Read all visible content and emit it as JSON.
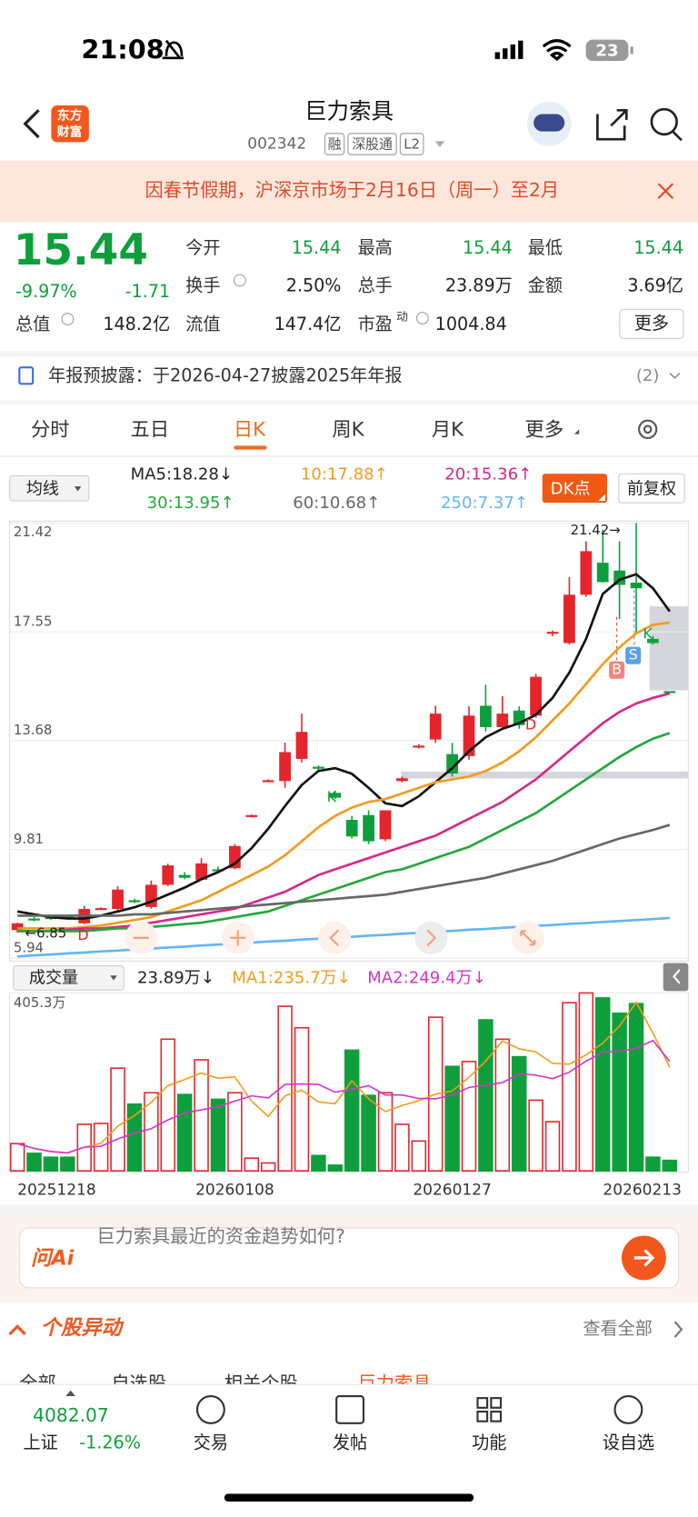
{
  "status": {
    "time": "21:08",
    "battery": "23"
  },
  "header": {
    "logo": [
      "东方",
      "财富"
    ],
    "title": "巨力索具",
    "code": "002342",
    "tags": [
      "融",
      "深股通",
      "L2"
    ]
  },
  "banner": "因春节假期，沪深京市场于2月16日（周一）至2月",
  "quote": {
    "price": "15.44",
    "change_pct": "-9.97%",
    "change": "-1.71",
    "stats": [
      [
        "今开",
        "15.44"
      ],
      [
        "最高",
        "15.44"
      ],
      [
        "最低",
        "15.44"
      ],
      [
        "换手",
        "2.50%"
      ],
      [
        "总手",
        "23.89万"
      ],
      [
        "金额",
        "3.69亿"
      ],
      [
        "总值",
        "148.2亿"
      ],
      [
        "流值",
        "147.4亿"
      ]
    ],
    "pe_label": "市盈",
    "pe_sup": "动",
    "pe": "1004.84",
    "more": "更多"
  },
  "notice": {
    "text": "年报预披露：于2026-04-27披露2025年年报",
    "count": "(2)"
  },
  "tabs": [
    "分时",
    "五日",
    "日K",
    "周K",
    "月K",
    "更多"
  ],
  "toolbar": {
    "ma_select": "均线",
    "dk": "DK点",
    "adjust": "前复权",
    "vol_select": "成交量"
  },
  "chart_data": [
    {
      "type": "candlestick",
      "ylim": [
        5.94,
        21.42
      ],
      "yticks": [
        21.42,
        17.55,
        13.68,
        9.81,
        5.94
      ],
      "grid": true,
      "up_color": "#e4262c",
      "down_color": "#0e9f3c",
      "open": [
        6.94,
        7.35,
        7.4,
        7.45,
        7.18,
        7.69,
        7.69,
        8.0,
        7.76,
        8.55,
        8.9,
        8.73,
        9.1,
        9.14,
        11.0,
        12.24,
        12.24,
        13.03,
        12.75,
        11.82,
        10.86,
        11.03,
        10.17,
        12.24,
        13.47,
        13.72,
        13.2,
        13.13,
        14.92,
        14.16,
        14.75,
        14.57,
        17.5,
        17.15,
        18.87,
        20.01,
        19.73,
        19.3,
        17.3,
        15.44
      ],
      "high": [
        7.2,
        7.4,
        7.42,
        7.5,
        7.8,
        7.75,
        8.5,
        8.05,
        8.7,
        9.3,
        9.0,
        9.5,
        9.2,
        10.0,
        11.05,
        12.3,
        13.61,
        14.64,
        12.8,
        11.9,
        11.0,
        11.2,
        11.2,
        12.4,
        13.55,
        14.92,
        13.6,
        14.9,
        15.67,
        15.26,
        14.9,
        16.06,
        17.6,
        19.5,
        20.77,
        21.18,
        20.77,
        21.42,
        17.4,
        15.44
      ],
      "low": [
        6.85,
        7.25,
        7.3,
        7.38,
        7.15,
        7.65,
        7.65,
        7.9,
        7.7,
        8.5,
        8.75,
        8.7,
        9.0,
        9.1,
        10.95,
        12.2,
        12.0,
        12.9,
        12.6,
        11.6,
        10.2,
        10.0,
        10.1,
        12.2,
        13.4,
        13.6,
        12.4,
        13.0,
        14.0,
        14.1,
        14.1,
        14.5,
        17.4,
        17.1,
        18.8,
        19.3,
        18.01,
        17.5,
        17.1,
        15.44
      ],
      "close": [
        7.18,
        7.3,
        7.35,
        7.42,
        7.69,
        7.72,
        8.38,
        7.94,
        8.55,
        9.24,
        8.8,
        9.31,
        9.07,
        9.93,
        11.03,
        12.27,
        13.27,
        13.99,
        12.68,
        11.65,
        10.27,
        10.1,
        11.2,
        12.34,
        13.5,
        14.64,
        12.51,
        14.57,
        14.16,
        14.64,
        14.23,
        15.95,
        17.55,
        18.87,
        20.42,
        19.32,
        19.22,
        19.1,
        17.15,
        15.44
      ],
      "series": [
        {
          "name": "MA5:18.28↓",
          "color": "#111111",
          "values": [
            7.6,
            7.5,
            7.4,
            7.35,
            7.35,
            7.45,
            7.6,
            7.75,
            7.95,
            8.2,
            8.45,
            8.75,
            9.0,
            9.3,
            9.85,
            10.55,
            11.35,
            12.1,
            12.6,
            12.7,
            12.5,
            12.0,
            11.45,
            11.35,
            11.7,
            12.2,
            12.7,
            13.3,
            13.8,
            14.1,
            14.3,
            14.6,
            15.2,
            16.1,
            17.3,
            18.9,
            19.4,
            19.6,
            19.1,
            18.28
          ]
        },
        {
          "name": "10:17.88↑",
          "color": "#f59a1b",
          "values": [
            7.0,
            7.0,
            7.0,
            7.0,
            7.05,
            7.1,
            7.2,
            7.3,
            7.4,
            7.6,
            7.8,
            8.0,
            8.3,
            8.6,
            8.9,
            9.2,
            9.6,
            10.1,
            10.6,
            11.0,
            11.3,
            11.5,
            11.6,
            11.8,
            12.0,
            12.2,
            12.3,
            12.4,
            12.6,
            12.9,
            13.3,
            13.8,
            14.4,
            15.0,
            15.7,
            16.4,
            17.0,
            17.5,
            17.8,
            17.88
          ]
        },
        {
          "name": "20:15.36↑",
          "color": "#d6288c",
          "values": [
            6.9,
            6.9,
            6.9,
            6.95,
            7.0,
            7.0,
            7.05,
            7.1,
            7.2,
            7.3,
            7.4,
            7.5,
            7.6,
            7.7,
            7.9,
            8.1,
            8.3,
            8.6,
            8.9,
            9.1,
            9.3,
            9.5,
            9.7,
            9.9,
            10.1,
            10.3,
            10.6,
            10.9,
            11.2,
            11.5,
            11.9,
            12.3,
            12.8,
            13.3,
            13.8,
            14.3,
            14.7,
            15.0,
            15.2,
            15.36
          ]
        },
        {
          "name": "30:13.95↑",
          "color": "#23a83a",
          "values": [
            6.9,
            6.9,
            6.9,
            6.9,
            6.9,
            6.95,
            7.0,
            7.0,
            7.05,
            7.1,
            7.15,
            7.2,
            7.3,
            7.4,
            7.5,
            7.6,
            7.8,
            8.0,
            8.2,
            8.4,
            8.6,
            8.8,
            9.0,
            9.1,
            9.3,
            9.5,
            9.7,
            9.9,
            10.2,
            10.5,
            10.8,
            11.1,
            11.5,
            11.9,
            12.3,
            12.7,
            13.1,
            13.45,
            13.75,
            13.95
          ]
        },
        {
          "name": "60:10.68↑",
          "color": "#666666",
          "values": [
            7.45,
            7.45,
            7.45,
            7.45,
            7.45,
            7.45,
            7.45,
            7.5,
            7.5,
            7.55,
            7.6,
            7.65,
            7.7,
            7.75,
            7.8,
            7.85,
            7.9,
            7.95,
            8.0,
            8.05,
            8.1,
            8.15,
            8.2,
            8.3,
            8.4,
            8.5,
            8.6,
            8.7,
            8.8,
            8.95,
            9.1,
            9.25,
            9.4,
            9.6,
            9.8,
            10.0,
            10.2,
            10.35,
            10.5,
            10.68
          ]
        },
        {
          "name": "250:7.37↑",
          "color": "#63b6f0",
          "values": [
            6.0,
            6.04,
            6.07,
            6.11,
            6.14,
            6.18,
            6.21,
            6.25,
            6.28,
            6.32,
            6.35,
            6.39,
            6.42,
            6.46,
            6.49,
            6.53,
            6.56,
            6.6,
            6.63,
            6.67,
            6.7,
            6.74,
            6.77,
            6.81,
            6.84,
            6.88,
            6.91,
            6.95,
            6.98,
            7.02,
            7.05,
            7.09,
            7.12,
            7.16,
            7.19,
            7.23,
            7.26,
            7.3,
            7.33,
            7.37
          ]
        }
      ],
      "annotations": [
        "21.42→",
        "←6.85"
      ],
      "markers": [
        "D",
        "D",
        "K",
        "K",
        "B",
        "S"
      ]
    },
    {
      "type": "bar",
      "categories": [
        "20251218",
        null,
        null,
        null,
        null,
        null,
        null,
        null,
        null,
        null,
        null,
        null,
        null,
        "20260108",
        null,
        null,
        null,
        null,
        null,
        null,
        null,
        null,
        null,
        null,
        null,
        null,
        "20260127",
        null,
        null,
        null,
        null,
        null,
        null,
        null,
        null,
        null,
        null,
        null,
        null,
        "20260213"
      ],
      "values": [
        62,
        40,
        31,
        31,
        106,
        108,
        234,
        152,
        178,
        300,
        174,
        253,
        163,
        178,
        29,
        18,
        375,
        326,
        35,
        13,
        275,
        172,
        178,
        106,
        68,
        350,
        238,
        249,
        344,
        300,
        260,
        161,
        112,
        383,
        405.3,
        394,
        359,
        381,
        31,
        23.89
      ],
      "ylim": [
        0,
        405.3
      ],
      "yticks": [
        {
          "value": 405.3,
          "label": "405.3万"
        }
      ],
      "current_label": "23.89万↓",
      "series": [
        {
          "name": "MA1:235.7万↓",
          "color": "#f59a1b",
          "values": [
            62,
            51,
            44,
            41,
            54,
            63,
            102,
            126,
            156,
            194,
            208,
            223,
            211,
            214,
            159,
            124,
            171,
            184,
            157,
            153,
            205,
            164,
            135,
            149,
            160,
            175,
            182,
            213,
            250,
            296,
            278,
            271,
            245,
            243,
            264,
            291,
            330,
            384,
            314,
            235.7
          ]
        },
        {
          "name": "MA2:249.4万↓",
          "color": "#d633c8",
          "values": [
            62,
            51,
            44,
            41,
            54,
            56,
            73,
            86,
            96,
            116,
            132,
            139,
            146,
            159,
            171,
            166,
            197,
            198,
            197,
            179,
            186,
            194,
            173,
            173,
            165,
            164,
            173,
            190,
            195,
            201,
            221,
            218,
            210,
            225,
            250,
            270,
            273,
            279,
            297,
            249.4
          ]
        }
      ]
    }
  ],
  "ai": {
    "brand": "问Ai",
    "prompt": "巨力索具最近的资金趋势如何?"
  },
  "movers": {
    "title": "个股异动",
    "more": "查看全部",
    "tabs": [
      "全部",
      "自选股",
      "相关个股",
      "巨力索具"
    ]
  },
  "index": {
    "value": "4082.07",
    "name": "上证",
    "change": "-1.26%"
  },
  "nav": [
    "交易",
    "发帖",
    "功能",
    "设自选"
  ]
}
